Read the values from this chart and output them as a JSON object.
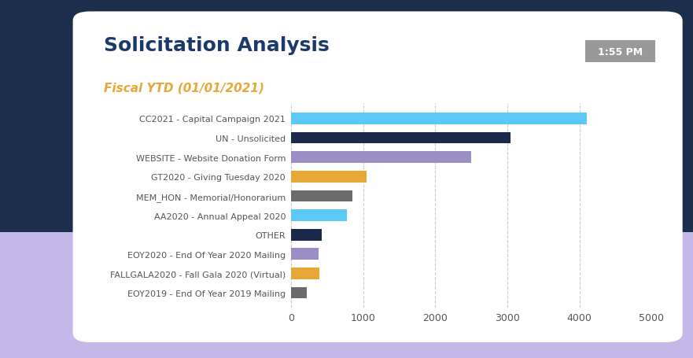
{
  "title": "Solicitation Analysis",
  "subtitle": "Fiscal YTD (01/01/2021)",
  "timestamp": "1:55 PM",
  "categories": [
    "CC2021 - Capital Campaign 2021",
    "UN - Unsolicited",
    "WEBSITE - Website Donation Form",
    "GT2020 - Giving Tuesday 2020",
    "MEM_HON - Memorial/Honorarium",
    "AA2020 - Annual Appeal 2020",
    "OTHER",
    "EOY2020 - End Of Year 2020 Mailing",
    "FALLGALA2020 - Fall Gala 2020 (Virtual)",
    "EOY2019 - End Of Year 2019 Mailing"
  ],
  "values": [
    4100,
    3050,
    2500,
    1050,
    850,
    780,
    420,
    380,
    390,
    220
  ],
  "colors": [
    "#5BC8F5",
    "#1B2A4A",
    "#9B8EC4",
    "#E8A838",
    "#6B6B6B",
    "#5BC8F5",
    "#1B2A4A",
    "#9B8EC4",
    "#E8A838",
    "#6B6B6B"
  ],
  "xlim": [
    0,
    5000
  ],
  "xticks": [
    0,
    1000,
    2000,
    3000,
    4000,
    5000
  ],
  "title_color": "#1B3A6B",
  "subtitle_color": "#E8A838",
  "title_fontsize": 18,
  "subtitle_fontsize": 11,
  "card_background": "#FFFFFF",
  "outer_top_color": "#1B2E4B",
  "outer_bottom_color": "#C5B8E8",
  "timestamp_bg": "#999999",
  "timestamp_color": "#FFFFFF",
  "grid_color": "#CCCCCC",
  "label_color": "#555555",
  "tick_fontsize": 9,
  "label_fontsize": 8
}
